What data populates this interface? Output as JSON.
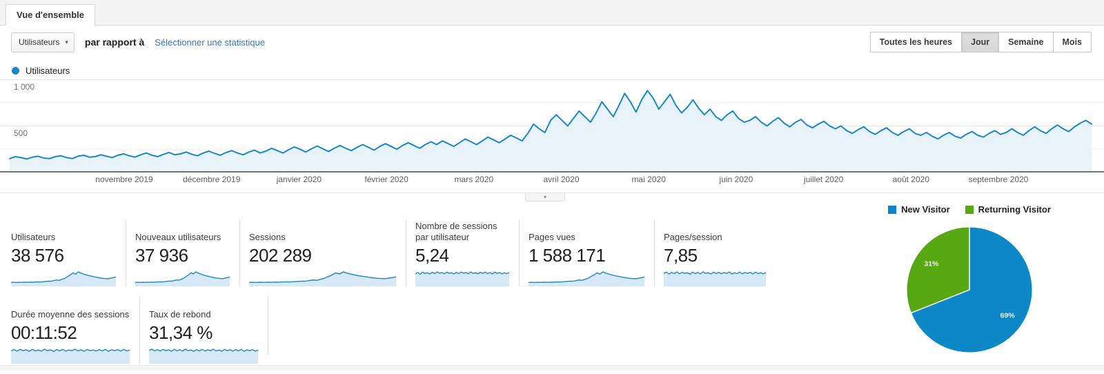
{
  "tab": {
    "label": "Vue d'ensemble"
  },
  "icons": {
    "caret_down": "▾"
  },
  "controls": {
    "metric_selector": {
      "value": "Utilisateurs"
    },
    "compare_label": "par rapport à",
    "select_stat_link": "Sélectionner une statistique",
    "granularity": [
      {
        "label": "Toutes les heures",
        "selected": false
      },
      {
        "label": "Jour",
        "selected": true
      },
      {
        "label": "Semaine",
        "selected": false
      },
      {
        "label": "Mois",
        "selected": false
      }
    ]
  },
  "legend": {
    "label": "Utilisateurs",
    "color": "#1b87c6"
  },
  "chart_data": [
    {
      "type": "area",
      "name": "users-over-time",
      "title": "Utilisateurs par jour",
      "x_tick_labels": [
        "novembre 2019",
        "décembre 2019",
        "janvier 2020",
        "février 2020",
        "mars 2020",
        "avril 2020",
        "mai 2020",
        "juin 2020",
        "juillet 2020",
        "août 2020",
        "septembre 2020"
      ],
      "y_ticks": [
        1000,
        500
      ],
      "y_tick_labels": [
        "1 000",
        "500"
      ],
      "ylim": [
        0,
        1000
      ],
      "grid": true,
      "line_color": "#1b87c6",
      "fill_color": "#e7f2f9",
      "series": [
        {
          "name": "Utilisateurs",
          "values": [
            150,
            170,
            160,
            145,
            165,
            175,
            155,
            150,
            170,
            180,
            160,
            150,
            175,
            185,
            165,
            170,
            190,
            175,
            160,
            185,
            200,
            180,
            165,
            190,
            210,
            185,
            170,
            195,
            215,
            190,
            200,
            220,
            195,
            180,
            210,
            230,
            205,
            185,
            215,
            235,
            210,
            190,
            220,
            240,
            210,
            230,
            260,
            235,
            210,
            245,
            275,
            250,
            220,
            255,
            285,
            255,
            225,
            260,
            290,
            260,
            235,
            270,
            300,
            270,
            240,
            280,
            310,
            280,
            250,
            290,
            320,
            290,
            260,
            300,
            330,
            300,
            340,
            310,
            280,
            320,
            360,
            330,
            300,
            340,
            380,
            350,
            320,
            360,
            400,
            370,
            340,
            420,
            520,
            470,
            430,
            560,
            620,
            560,
            500,
            580,
            660,
            600,
            540,
            640,
            760,
            680,
            600,
            720,
            850,
            760,
            650,
            780,
            880,
            800,
            680,
            760,
            840,
            720,
            640,
            700,
            780,
            690,
            620,
            680,
            600,
            560,
            620,
            660,
            580,
            540,
            560,
            600,
            540,
            500,
            550,
            590,
            530,
            490,
            540,
            570,
            510,
            480,
            520,
            550,
            500,
            470,
            500,
            450,
            420,
            460,
            490,
            440,
            410,
            450,
            480,
            430,
            400,
            440,
            470,
            420,
            400,
            430,
            390,
            360,
            400,
            430,
            390,
            370,
            410,
            440,
            400,
            380,
            420,
            450,
            410,
            430,
            470,
            430,
            400,
            450,
            490,
            450,
            420,
            470,
            510,
            470,
            440,
            490,
            530,
            560,
            520
          ]
        }
      ]
    },
    {
      "type": "pie",
      "name": "visitor-type-share",
      "labels": [
        "New Visitor",
        "Returning Visitor"
      ],
      "values": [
        69,
        31
      ],
      "value_labels": [
        "69%",
        "31%"
      ],
      "colors": [
        "#0d88c6",
        "#58a813"
      ],
      "legend_position": "top"
    }
  ],
  "cards": [
    {
      "label": "Utilisateurs",
      "value": "38 576",
      "spark": [
        165,
        172,
        160,
        175,
        168,
        180,
        172,
        185,
        178,
        192,
        200,
        190,
        212,
        230,
        248,
        240,
        285,
        320,
        300,
        365,
        430,
        540,
        640,
        780,
        700,
        840,
        760,
        700,
        645,
        600,
        560,
        525,
        485,
        455,
        430,
        415,
        400,
        435,
        470,
        520
      ]
    },
    {
      "label": "Nouveaux utilisateurs",
      "value": "37 936",
      "spark": [
        160,
        175,
        165,
        178,
        170,
        184,
        175,
        188,
        180,
        195,
        205,
        195,
        215,
        235,
        252,
        245,
        290,
        325,
        305,
        370,
        440,
        550,
        650,
        790,
        710,
        845,
        765,
        705,
        650,
        605,
        565,
        530,
        490,
        460,
        435,
        420,
        405,
        440,
        475,
        525
      ]
    },
    {
      "label": "Sessions",
      "value": "202 289",
      "spark": [
        168,
        174,
        162,
        178,
        170,
        182,
        174,
        188,
        180,
        194,
        204,
        194,
        214,
        232,
        250,
        242,
        288,
        322,
        302,
        368,
        435,
        545,
        645,
        785,
        705,
        842,
        762,
        702,
        648,
        602,
        562,
        528,
        488,
        458,
        432,
        418,
        402,
        438,
        472,
        522
      ]
    },
    {
      "label": "Nombre de sessions par utilisateur",
      "value": "5,24",
      "spark": [
        52,
        58,
        50,
        60,
        54,
        57,
        51,
        59,
        53,
        61,
        55,
        58,
        52,
        60,
        54,
        57,
        51,
        59,
        53,
        60,
        55,
        58,
        52,
        61,
        54,
        57,
        52,
        59,
        54,
        60,
        53,
        58,
        51,
        60,
        54,
        58,
        52,
        57,
        53,
        58
      ]
    },
    {
      "label": "Pages vues",
      "value": "1 588 171",
      "spark": [
        162,
        170,
        158,
        174,
        166,
        178,
        170,
        183,
        176,
        190,
        198,
        188,
        210,
        228,
        246,
        238,
        282,
        318,
        298,
        362,
        428,
        538,
        638,
        778,
        698,
        838,
        758,
        698,
        642,
        598,
        558,
        522,
        482,
        452,
        428,
        412,
        398,
        432,
        468,
        518
      ]
    },
    {
      "label": "Pages/session",
      "value": "7,85",
      "spark": [
        54,
        60,
        51,
        58,
        53,
        61,
        52,
        59,
        54,
        57,
        50,
        60,
        53,
        58,
        52,
        61,
        54,
        57,
        51,
        60,
        53,
        59,
        52,
        58,
        54,
        61,
        51,
        57,
        53,
        60,
        52,
        58,
        54,
        59,
        51,
        60,
        53,
        57,
        52,
        58
      ]
    },
    {
      "label": "Durée moyenne des sessions",
      "value": "00:11:52",
      "spark": [
        53,
        59,
        52,
        60,
        54,
        58,
        51,
        60,
        53,
        57,
        52,
        61,
        54,
        58,
        50,
        59,
        53,
        60,
        52,
        57,
        54,
        61,
        53,
        58,
        51,
        60,
        54,
        57,
        52,
        59,
        53,
        60,
        51,
        58,
        54,
        59,
        52,
        60,
        53,
        57
      ]
    },
    {
      "label": "Taux de rebond",
      "value": "31,34 %",
      "spark": [
        55,
        61,
        53,
        59,
        52,
        60,
        54,
        58,
        51,
        60,
        53,
        59,
        52,
        61,
        54,
        57,
        51,
        59,
        53,
        60,
        52,
        58,
        54,
        61,
        53,
        57,
        51,
        60,
        54,
        58,
        52,
        59,
        53,
        60,
        51,
        58,
        54,
        59,
        52,
        57
      ]
    }
  ]
}
